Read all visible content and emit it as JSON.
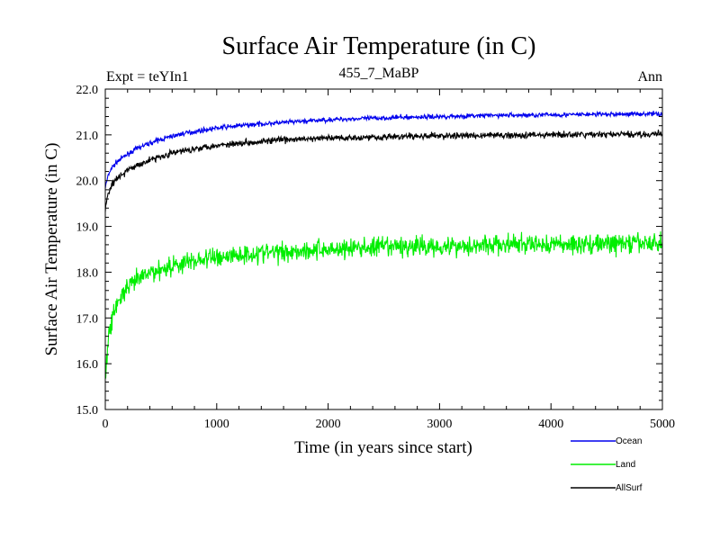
{
  "chart_data": {
    "type": "line",
    "title": "Surface Air Temperature (in C)",
    "subtitle_left": "Expt = teYIn1",
    "subtitle_center": "455_7_MaBP",
    "subtitle_right": "Ann",
    "xlabel": "Time (in years since start)",
    "ylabel": "Surface Air Temperature (in C)",
    "xlim": [
      0,
      5000
    ],
    "ylim": [
      15.0,
      22.0
    ],
    "xticks": [
      0,
      1000,
      2000,
      3000,
      4000,
      5000
    ],
    "xtick_labels": [
      "0",
      "1000",
      "2000",
      "3000",
      "4000",
      "5000"
    ],
    "yticks": [
      15,
      16,
      17,
      18,
      19,
      20,
      21,
      22
    ],
    "ytick_labels": [
      "15.0",
      "16.0",
      "17.0",
      "18.0",
      "19.0",
      "20.0",
      "21.0",
      "22.0"
    ],
    "grid": false,
    "legend_position": "bottom-right",
    "series": [
      {
        "name": "Ocean",
        "color": "#0000ee",
        "noise": 0.05,
        "x": [
          0,
          25,
          50,
          100,
          200,
          300,
          400,
          500,
          600,
          700,
          800,
          900,
          1000,
          1200,
          1400,
          1600,
          1800,
          2000,
          2200,
          2400,
          2600,
          2800,
          3000,
          3200,
          3400,
          3600,
          3800,
          4000,
          4200,
          4400,
          4600,
          4800,
          5000
        ],
        "y": [
          19.85,
          20.1,
          20.25,
          20.4,
          20.58,
          20.72,
          20.82,
          20.9,
          20.97,
          21.03,
          21.07,
          21.11,
          21.15,
          21.2,
          21.24,
          21.27,
          21.3,
          21.33,
          21.35,
          21.36,
          21.38,
          21.39,
          21.4,
          21.41,
          21.42,
          21.43,
          21.43,
          21.44,
          21.44,
          21.45,
          21.45,
          21.46,
          21.46
        ]
      },
      {
        "name": "Land",
        "color": "#00ee00",
        "noise": 0.22,
        "x": [
          0,
          25,
          50,
          100,
          200,
          300,
          400,
          500,
          600,
          700,
          800,
          900,
          1000,
          1200,
          1400,
          1600,
          1800,
          2000,
          2200,
          2400,
          2600,
          2800,
          3000,
          3200,
          3400,
          3600,
          3800,
          4000,
          4200,
          4400,
          4600,
          4800,
          5000
        ],
        "y": [
          15.6,
          16.5,
          16.9,
          17.3,
          17.65,
          17.85,
          17.98,
          18.07,
          18.14,
          18.2,
          18.25,
          18.29,
          18.33,
          18.38,
          18.42,
          18.45,
          18.48,
          18.5,
          18.52,
          18.54,
          18.55,
          18.56,
          18.57,
          18.58,
          18.59,
          18.6,
          18.6,
          18.61,
          18.61,
          18.62,
          18.62,
          18.63,
          18.63
        ]
      },
      {
        "name": "AllSurf",
        "color": "#000000",
        "noise": 0.07,
        "x": [
          0,
          25,
          50,
          100,
          200,
          300,
          400,
          500,
          600,
          700,
          800,
          900,
          1000,
          1200,
          1400,
          1600,
          1800,
          2000,
          2200,
          2400,
          2600,
          2800,
          3000,
          3200,
          3400,
          3600,
          3800,
          4000,
          4200,
          4400,
          4600,
          4800,
          5000
        ],
        "y": [
          19.4,
          19.7,
          19.88,
          20.05,
          20.22,
          20.35,
          20.45,
          20.53,
          20.6,
          20.65,
          20.7,
          20.74,
          20.77,
          20.82,
          20.86,
          20.89,
          20.91,
          20.93,
          20.94,
          20.95,
          20.96,
          20.97,
          20.98,
          20.98,
          20.99,
          20.99,
          21.0,
          21.0,
          21.0,
          21.01,
          21.01,
          21.01,
          21.02
        ]
      }
    ]
  }
}
